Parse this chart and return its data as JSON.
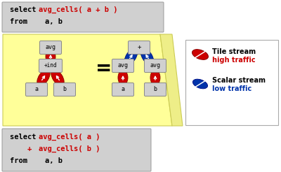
{
  "bg_color": "#ffffff",
  "top_box_color": "#d0d0d0",
  "bottom_box_color": "#d0d0d0",
  "yellow_bg": "#ffff99",
  "node_box_color": "#d0d0d0",
  "red_color": "#cc0000",
  "blue_color": "#0033aa",
  "legend_tile": "Tile stream",
  "legend_tile_sub": "high traffic",
  "legend_scalar": "Scalar stream",
  "legend_scalar_sub": "low traffic"
}
